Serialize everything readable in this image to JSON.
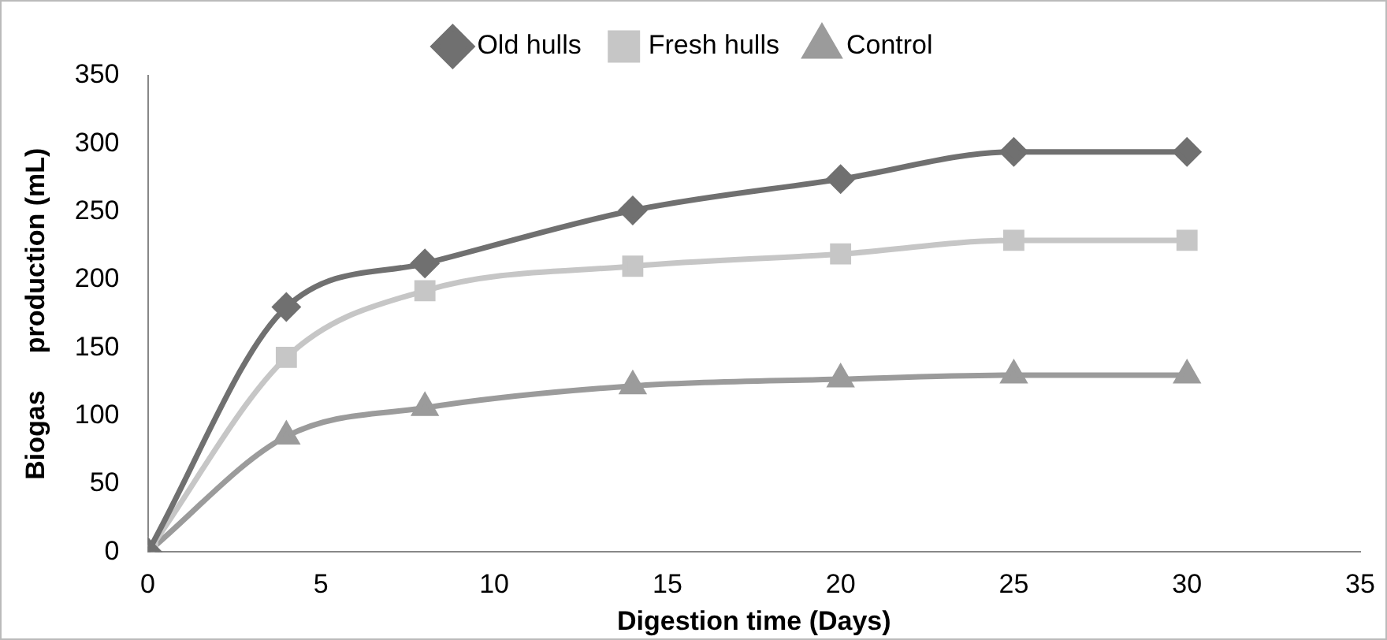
{
  "chart_data": {
    "type": "line",
    "xlabel": "Digestion time (Days)",
    "ylabel": "Biogas     production (mL)",
    "x": [
      0,
      4,
      8,
      14,
      20,
      25,
      30
    ],
    "series": [
      {
        "name": "Old hulls",
        "color": "#707070",
        "marker": "diamond",
        "values": [
          0,
          180,
          212,
          251,
          274,
          294,
          294
        ]
      },
      {
        "name": "Fresh hulls",
        "color": "#c6c6c6",
        "marker": "square",
        "values": [
          0,
          143,
          192,
          210,
          219,
          229,
          229
        ]
      },
      {
        "name": "Control",
        "color": "#9b9b9b",
        "marker": "triangle",
        "values": [
          0,
          85,
          106,
          122,
          127,
          130,
          130
        ]
      }
    ],
    "xlim": [
      0,
      35
    ],
    "xticks": [
      0,
      5,
      10,
      15,
      20,
      25,
      30,
      35
    ],
    "ylim": [
      0,
      350
    ],
    "yticks": [
      0,
      50,
      100,
      150,
      200,
      250,
      300,
      350
    ],
    "grid": false,
    "legend": "top"
  }
}
